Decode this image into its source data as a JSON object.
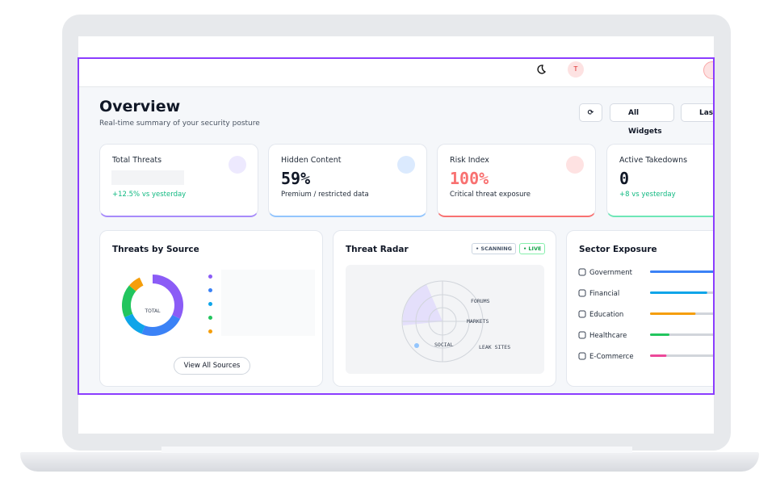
{
  "topbar": {
    "avatar": "T"
  },
  "header": {
    "title": "Overview",
    "subtitle": "Real-time summary of your security posture",
    "buttons": [
      "All Widgets",
      "Last"
    ]
  },
  "cards": [
    {
      "title": "Total Threats",
      "value": null,
      "note": "+12.5% vs yesterday"
    },
    {
      "title": "Hidden Content",
      "value": "59%",
      "note": "Premium / restricted data"
    },
    {
      "title": "Risk Index",
      "value": "100%",
      "note": "Critical threat exposure"
    },
    {
      "title": "Active Takedowns",
      "value": "0",
      "note": "+8 vs yesterday"
    }
  ],
  "sources": {
    "title": "Threats by Source",
    "center_label": "TOTAL",
    "button": "View All Sources",
    "segments": [
      {
        "color": "#8b5cf6",
        "value": 33
      },
      {
        "color": "#3b82f6",
        "value": 24
      },
      {
        "color": "#0ea5e9",
        "value": 13
      },
      {
        "color": "#22c55e",
        "value": 18
      },
      {
        "color": "#f59e0b",
        "value": 7
      }
    ]
  },
  "radar": {
    "title": "Threat Radar",
    "badges": [
      "• SCANNING",
      "• LIVE"
    ],
    "labels": [
      "FORUMS",
      "MARKETS",
      "SOCIAL",
      "LEAK SITES"
    ]
  },
  "sectors": {
    "title": "Sector Exposure",
    "rows": [
      {
        "name": "Government",
        "color": "#3b82f6",
        "value": 85
      },
      {
        "name": "Financial",
        "color": "#0ea5e9",
        "value": 59
      },
      {
        "name": "Education",
        "color": "#f59e0b",
        "value": 47
      },
      {
        "name": "Healthcare",
        "color": "#22c55e",
        "value": 20
      },
      {
        "name": "E-Commerce",
        "color": "#ec4899",
        "value": 17
      }
    ]
  }
}
